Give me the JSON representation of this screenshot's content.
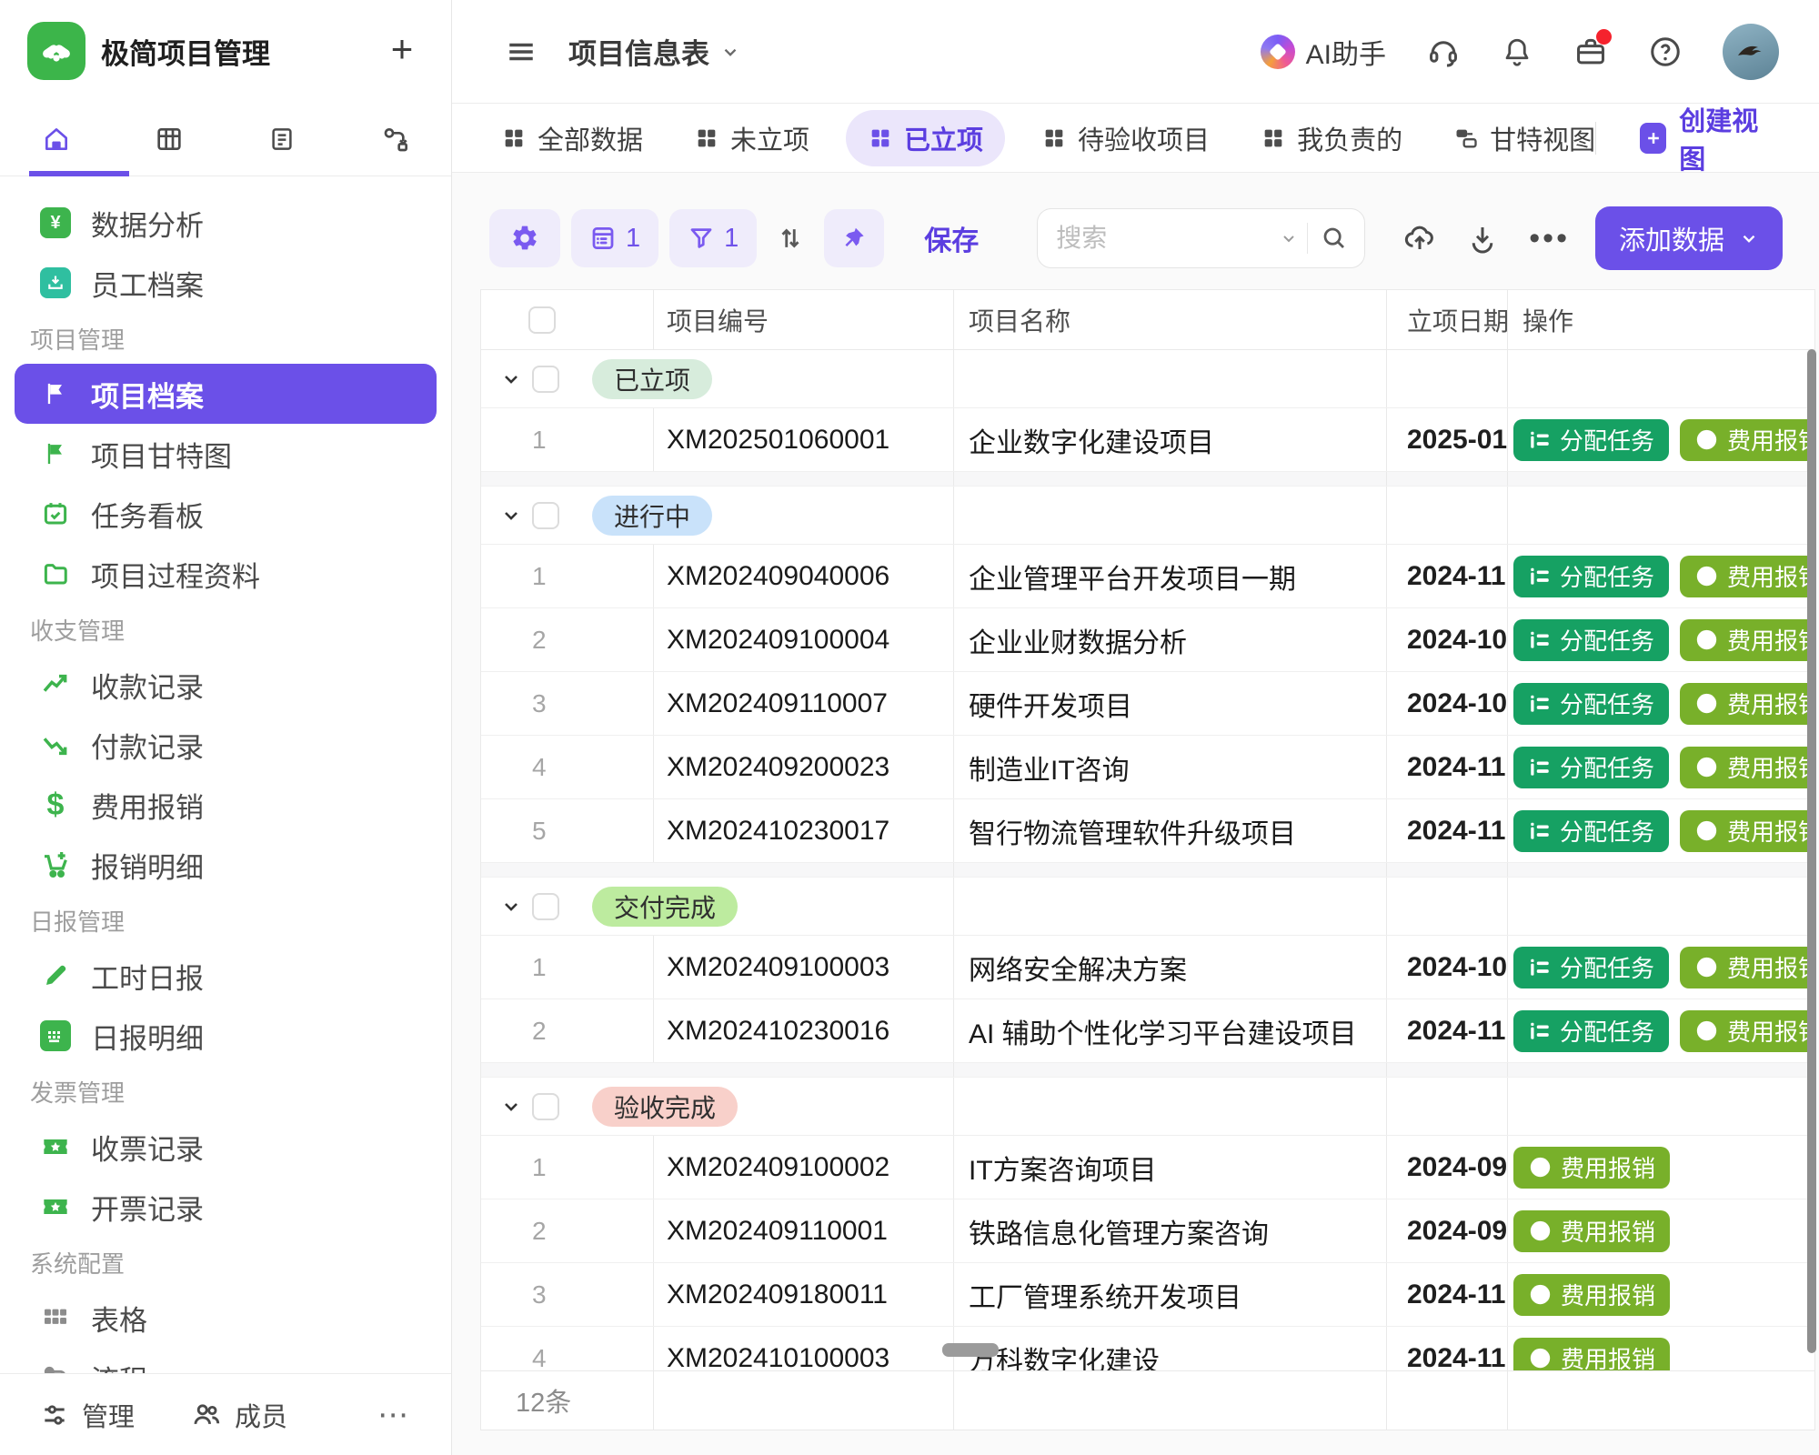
{
  "colors": {
    "accent_purple": "#6b50e8",
    "accent_purple_light": "#efecfb",
    "logo_green": "#3cb54a",
    "assign_button_green": "#16a163",
    "expense_button_olive": "#78b02a",
    "badge_established_bg": "#d7ecdc",
    "badge_inprogress_bg": "#c9e2fa",
    "badge_delivered_bg": "#bdeb9f",
    "badge_accepted_bg": "#f8d0ca"
  },
  "app": {
    "title": "极简项目管理",
    "add_label": "+"
  },
  "sidebar": {
    "primary_items": [
      {
        "label": "数据分析"
      },
      {
        "label": "员工档案"
      }
    ],
    "sections": [
      {
        "title": "项目管理",
        "items": [
          {
            "label": "项目档案",
            "active": true
          },
          {
            "label": "项目甘特图"
          },
          {
            "label": "任务看板"
          },
          {
            "label": "项目过程资料"
          }
        ]
      },
      {
        "title": "收支管理",
        "items": [
          {
            "label": "收款记录"
          },
          {
            "label": "付款记录"
          },
          {
            "label": "费用报销"
          },
          {
            "label": "报销明细"
          }
        ]
      },
      {
        "title": "日报管理",
        "items": [
          {
            "label": "工时日报"
          },
          {
            "label": "日报明细"
          }
        ]
      },
      {
        "title": "发票管理",
        "items": [
          {
            "label": "收票记录"
          },
          {
            "label": "开票记录"
          }
        ]
      },
      {
        "title": "系统配置",
        "items": [
          {
            "label": "表格"
          },
          {
            "label": "流程"
          }
        ]
      }
    ],
    "footer": {
      "manage": "管理",
      "members": "成员",
      "more": "⋯"
    }
  },
  "topbar": {
    "table_title": "项目信息表",
    "ai_assistant": "AI助手"
  },
  "views": {
    "tabs": [
      {
        "label": "全部数据"
      },
      {
        "label": "未立项"
      },
      {
        "label": "已立项",
        "active": true
      },
      {
        "label": "待验收项目"
      },
      {
        "label": "我负责的"
      },
      {
        "label": "甘特视图"
      }
    ],
    "create_label": "创建视图"
  },
  "toolbar": {
    "field_badge": "1",
    "filter_badge": "1",
    "save_label": "保存",
    "search_placeholder": "搜索",
    "add_button": "添加数据"
  },
  "table": {
    "columns": {
      "code": "项目编号",
      "name": "项目名称",
      "date": "立项日期",
      "actions": "操作"
    },
    "action_labels": {
      "assign": "分配任务",
      "expense": "费用报销"
    },
    "groups": [
      {
        "badge": "已立项",
        "status": "established",
        "rows": [
          {
            "n": "1",
            "code": "XM202501060001",
            "name": "企业数字化建设项目",
            "date": "2025-01",
            "actions": [
              "assign",
              "expense"
            ]
          }
        ]
      },
      {
        "badge": "进行中",
        "status": "inprogress",
        "rows": [
          {
            "n": "1",
            "code": "XM202409040006",
            "name": "企业管理平台开发项目一期",
            "date": "2024-11",
            "actions": [
              "assign",
              "expense"
            ]
          },
          {
            "n": "2",
            "code": "XM202409100004",
            "name": "企业业财数据分析",
            "date": "2024-10",
            "actions": [
              "assign",
              "expense"
            ]
          },
          {
            "n": "3",
            "code": "XM202409110007",
            "name": "硬件开发项目",
            "date": "2024-10",
            "actions": [
              "assign",
              "expense"
            ]
          },
          {
            "n": "4",
            "code": "XM202409200023",
            "name": "制造业IT咨询",
            "date": "2024-11",
            "actions": [
              "assign",
              "expense"
            ]
          },
          {
            "n": "5",
            "code": "XM202410230017",
            "name": "智行物流管理软件升级项目",
            "date": "2024-11",
            "actions": [
              "assign",
              "expense"
            ]
          }
        ]
      },
      {
        "badge": "交付完成",
        "status": "delivered",
        "rows": [
          {
            "n": "1",
            "code": "XM202409100003",
            "name": "网络安全解决方案",
            "date": "2024-10",
            "actions": [
              "assign",
              "expense"
            ]
          },
          {
            "n": "2",
            "code": "XM202410230016",
            "name": "AI 辅助个性化学习平台建设项目",
            "date": "2024-11",
            "actions": [
              "assign",
              "expense"
            ]
          }
        ]
      },
      {
        "badge": "验收完成",
        "status": "accepted",
        "rows": [
          {
            "n": "1",
            "code": "XM202409100002",
            "name": "IT方案咨询项目",
            "date": "2024-09",
            "actions": [
              "expense"
            ]
          },
          {
            "n": "2",
            "code": "XM202409110001",
            "name": "铁路信息化管理方案咨询",
            "date": "2024-09",
            "actions": [
              "expense"
            ]
          },
          {
            "n": "3",
            "code": "XM202409180011",
            "name": "工厂管理系统开发项目",
            "date": "2024-11",
            "actions": [
              "expense"
            ]
          },
          {
            "n": "4",
            "code": "XM202410100003",
            "name": "万科数字化建设",
            "date": "2024-11",
            "actions": [
              "expense"
            ]
          }
        ]
      }
    ],
    "summary": "12条"
  }
}
